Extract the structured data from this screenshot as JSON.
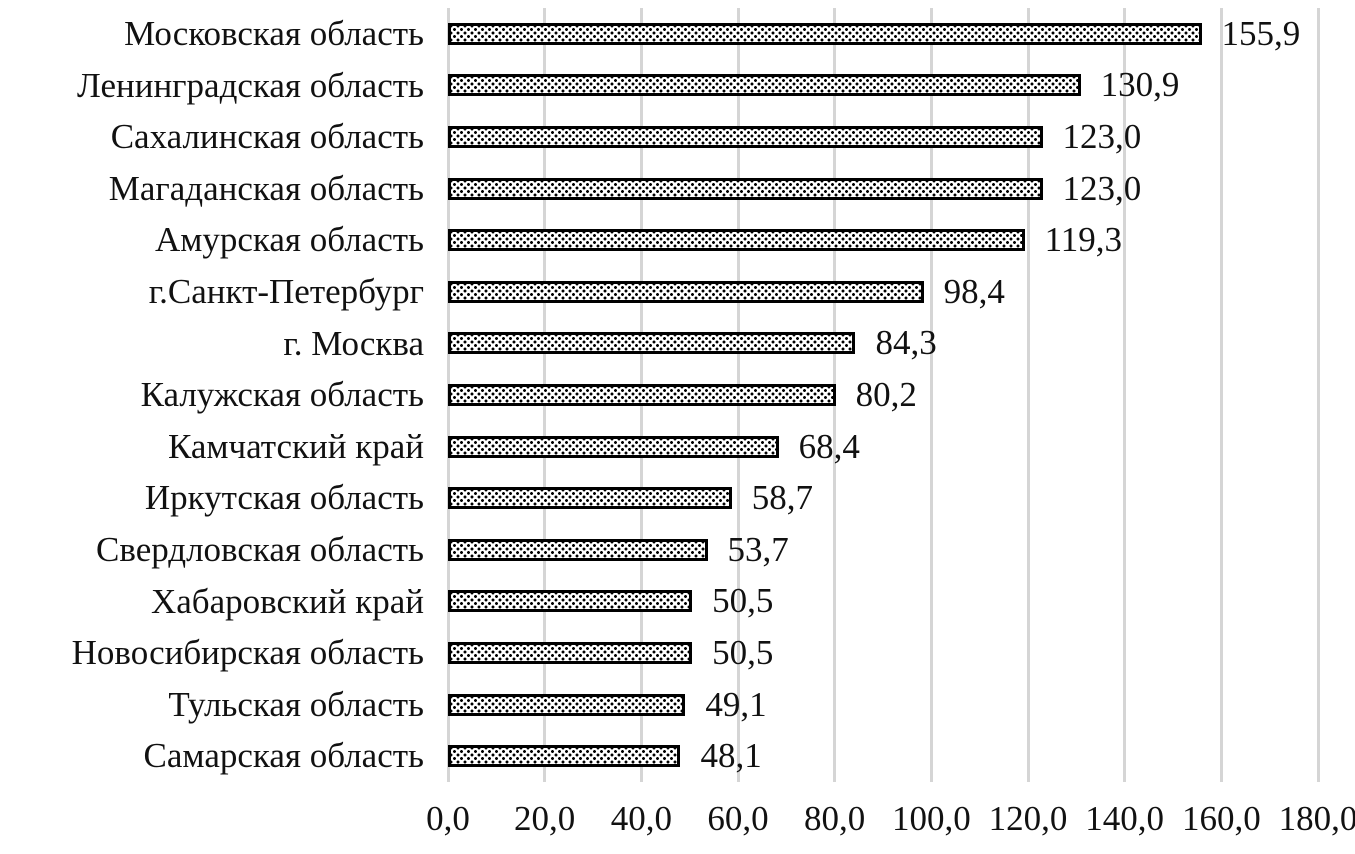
{
  "chart_data": {
    "type": "bar",
    "orientation": "horizontal",
    "title": "",
    "xlabel": "",
    "ylabel": "",
    "categories": [
      "Московская область",
      "Ленинградская область",
      "Сахалинская область",
      "Магаданская область",
      "Амурская область",
      "г.Санкт-Петербург",
      "г. Москва",
      "Калужская область",
      "Камчатский край",
      "Иркутская область",
      "Свердловская область",
      "Хабаровский край",
      "Новосибирская область",
      "Тульская область",
      "Самарская область"
    ],
    "values": [
      155.9,
      130.9,
      123.0,
      123.0,
      119.3,
      98.4,
      84.3,
      80.2,
      68.4,
      58.7,
      53.7,
      50.5,
      50.5,
      49.1,
      48.1
    ],
    "value_labels": [
      "155,9",
      "130,9",
      "123,0",
      "123,0",
      "119,3",
      "98,4",
      "84,3",
      "80,2",
      "68,4",
      "58,7",
      "53,7",
      "50,5",
      "50,5",
      "49,1",
      "48,1"
    ],
    "xlim": [
      0,
      180
    ],
    "x_tick_values": [
      0,
      20,
      40,
      60,
      80,
      100,
      120,
      140,
      160,
      180
    ],
    "x_tick_labels": [
      "0,0",
      "20,0",
      "40,0",
      "60,0",
      "80,0",
      "100,0",
      "120,0",
      "140,0",
      "160,0",
      "180,0"
    ],
    "grid": "vertical-gridlines-on",
    "legend": "none",
    "bar_fill": "dotted-pattern-black-on-white",
    "colors": {
      "bar_border": "#000000",
      "bar_background": "#ffffff",
      "bar_dots": "#000000",
      "gridline": "#d5d5d5",
      "text": "#111111",
      "background": "#ffffff"
    }
  }
}
